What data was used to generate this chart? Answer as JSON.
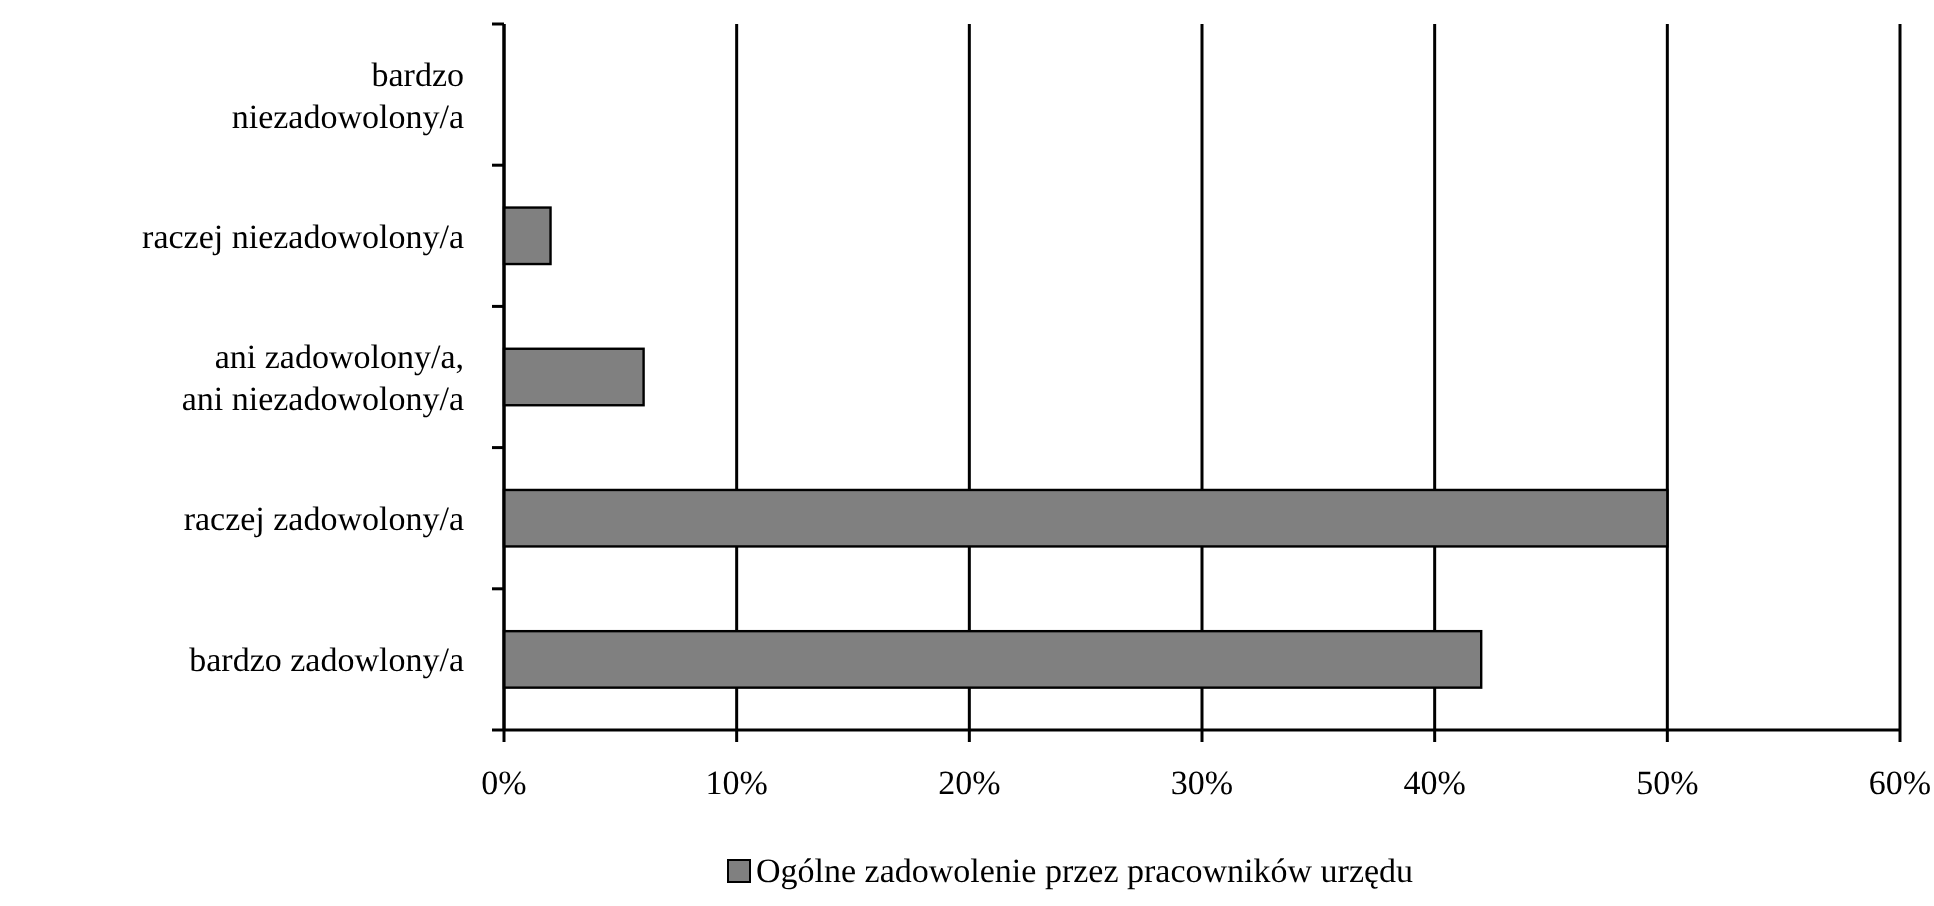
{
  "chart_data": {
    "type": "bar",
    "orientation": "horizontal",
    "categories": [
      "bardzo\nniezadowolony/a",
      "raczej niezadowolony/a",
      "ani zadowolony/a,\nani niezadowolony/a",
      "raczej zadowolony/a",
      "bardzo zadowlony/a"
    ],
    "series": [
      {
        "name": "Ogólne zadowolenie przez pracowników urzędu",
        "color": "#808080",
        "values": [
          0,
          2,
          6,
          50,
          42
        ]
      }
    ],
    "xlim": [
      0,
      60
    ],
    "xticks": [
      {
        "value": 0,
        "label": "0%"
      },
      {
        "value": 10,
        "label": "10%"
      },
      {
        "value": 20,
        "label": "20%"
      },
      {
        "value": 30,
        "label": "30%"
      },
      {
        "value": 40,
        "label": "40%"
      },
      {
        "value": 50,
        "label": "50%"
      },
      {
        "value": 60,
        "label": "60%"
      }
    ],
    "grid": "x",
    "legend": "bottom"
  }
}
